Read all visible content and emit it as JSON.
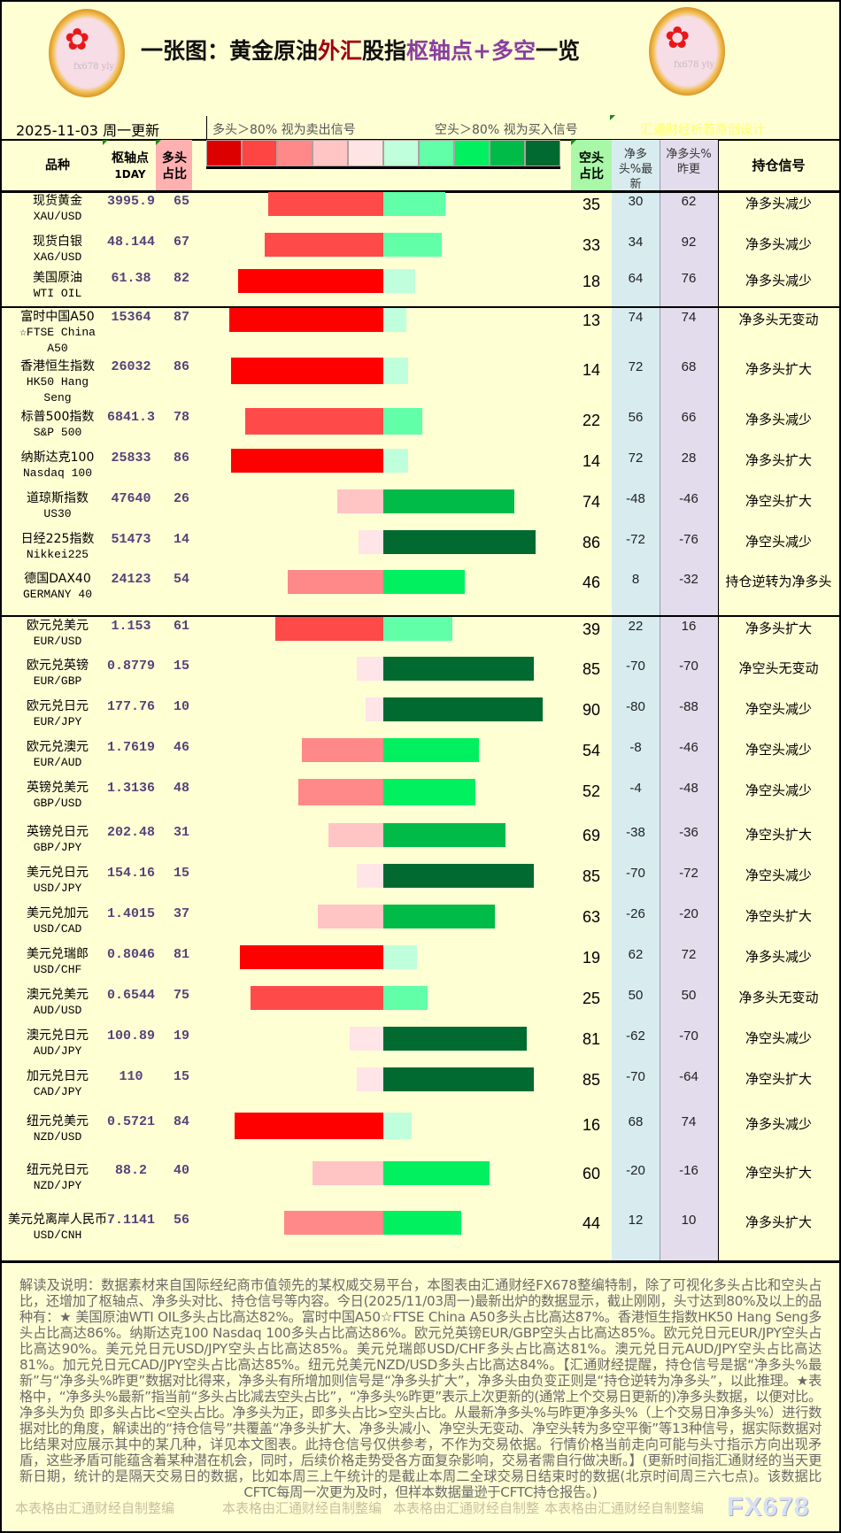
{
  "header": {
    "title_part1": "一张图：黄金原油",
    "title_part2": "外汇",
    "title_part3": "股指",
    "title_part4": "枢轴点+多空",
    "title_part5": "一览",
    "logo_watermark": "fx678 yly",
    "date": "2025-11-03  周一更新",
    "legend_long": "多头＞80% 视为卖出信号",
    "legend_short": "空头＞80% 视为买入信号",
    "credit": "汇通财经析若原创设计",
    "credit_color": "#ffff66"
  },
  "legend_colors": [
    "#dd0000",
    "#ff4444",
    "#ff8888",
    "#ffc4c4",
    "#ffe4e4",
    "#c0ffdc",
    "#60ffa8",
    "#00f060",
    "#00bb48",
    "#006a30"
  ],
  "bar_colors": {
    "long": {
      "ge80": "#ff0000",
      "61_79": "#ff4a4a",
      "41_60": "#ff8888",
      "21_40": "#ffc4c4",
      "le20": "#ffe4e8"
    },
    "short": {
      "ge80": "#006a30",
      "61_79": "#00bb48",
      "41_60": "#00f060",
      "21_40": "#60ffa8",
      "le20": "#c0ffdc"
    }
  },
  "columns": {
    "symbol": "品种",
    "pivot": "枢轴点",
    "pivot_sub": "1DAY",
    "long_pct": "多头占比",
    "short_pct": "空头占比",
    "net_latest": "净多头%最新",
    "net_prev": "净多头%昨更",
    "signal": "持仓信号"
  },
  "rows": [
    {
      "name": "现货黄金",
      "code": "XAU/USD",
      "pivot": "3995.9",
      "long": 65,
      "short": 35,
      "net": "30",
      "prev": "62",
      "signal": "净多头减少"
    },
    {
      "name": "现货白银",
      "code": "XAG/USD",
      "pivot": "48.144",
      "long": 67,
      "short": 33,
      "net": "34",
      "prev": "92",
      "signal": "净多头减少"
    },
    {
      "name": "美国原油",
      "code": "WTI OIL",
      "pivot": "61.38",
      "long": 82,
      "short": 18,
      "net": "64",
      "prev": "76",
      "signal": "净多头减少"
    },
    {
      "name": "富时中国A50",
      "code": "☆FTSE China A50",
      "pivot": "15364",
      "long": 87,
      "short": 13,
      "net": "74",
      "prev": "74",
      "signal": "净多头无变动"
    },
    {
      "name": "香港恒生指数",
      "code": "HK50 Hang Seng",
      "pivot": "26032",
      "long": 86,
      "short": 14,
      "net": "72",
      "prev": "68",
      "signal": "净多头扩大"
    },
    {
      "name": "标普500指数",
      "code": "S&P 500",
      "pivot": "6841.3",
      "long": 78,
      "short": 22,
      "net": "56",
      "prev": "66",
      "signal": "净多头减少"
    },
    {
      "name": "纳斯达克100",
      "code": "Nasdaq 100",
      "pivot": "25833",
      "long": 86,
      "short": 14,
      "net": "72",
      "prev": "28",
      "signal": "净多头扩大"
    },
    {
      "name": "道琼斯指数",
      "code": "US30",
      "pivot": "47640",
      "long": 26,
      "short": 74,
      "net": "-48",
      "prev": "-46",
      "signal": "净空头扩大"
    },
    {
      "name": "日经225指数",
      "code": "Nikkei225",
      "pivot": "51473",
      "long": 14,
      "short": 86,
      "net": "-72",
      "prev": "-76",
      "signal": "净空头减少"
    },
    {
      "name": "德国DAX40",
      "code": "GERMANY 40",
      "pivot": "24123",
      "long": 54,
      "short": 46,
      "net": "8",
      "prev": "-32",
      "signal": "持仓逆转为净多头"
    },
    {
      "name": "欧元兑美元",
      "code": "EUR/USD",
      "pivot": "1.153",
      "long": 61,
      "short": 39,
      "net": "22",
      "prev": "16",
      "signal": "净多头扩大"
    },
    {
      "name": "欧元兑英镑",
      "code": "EUR/GBP",
      "pivot": "0.8779",
      "long": 15,
      "short": 85,
      "net": "-70",
      "prev": "-70",
      "signal": "净空头无变动"
    },
    {
      "name": "欧元兑日元",
      "code": "EUR/JPY",
      "pivot": "177.76",
      "long": 10,
      "short": 90,
      "net": "-80",
      "prev": "-88",
      "signal": "净空头减少"
    },
    {
      "name": "欧元兑澳元",
      "code": "EUR/AUD",
      "pivot": "1.7619",
      "long": 46,
      "short": 54,
      "net": "-8",
      "prev": "-46",
      "signal": "净空头减少"
    },
    {
      "name": "英镑兑美元",
      "code": "GBP/USD",
      "pivot": "1.3136",
      "long": 48,
      "short": 52,
      "net": "-4",
      "prev": "-48",
      "signal": "净空头减少"
    },
    {
      "name": "英镑兑日元",
      "code": "GBP/JPY",
      "pivot": "202.48",
      "long": 31,
      "short": 69,
      "net": "-38",
      "prev": "-36",
      "signal": "净空头扩大"
    },
    {
      "name": "美元兑日元",
      "code": "USD/JPY",
      "pivot": "154.16",
      "long": 15,
      "short": 85,
      "net": "-70",
      "prev": "-72",
      "signal": "净空头减少"
    },
    {
      "name": "美元兑加元",
      "code": "USD/CAD",
      "pivot": "1.4015",
      "long": 37,
      "short": 63,
      "net": "-26",
      "prev": "-20",
      "signal": "净空头扩大"
    },
    {
      "name": "美元兑瑞郎",
      "code": "USD/CHF",
      "pivot": "0.8046",
      "long": 81,
      "short": 19,
      "net": "62",
      "prev": "72",
      "signal": "净多头减少"
    },
    {
      "name": "澳元兑美元",
      "code": "AUD/USD",
      "pivot": "0.6544",
      "long": 75,
      "short": 25,
      "net": "50",
      "prev": "50",
      "signal": "净多头无变动"
    },
    {
      "name": "澳元兑日元",
      "code": "AUD/JPY",
      "pivot": "100.89",
      "long": 19,
      "short": 81,
      "net": "-62",
      "prev": "-70",
      "signal": "净空头减少"
    },
    {
      "name": "加元兑日元",
      "code": "CAD/JPY",
      "pivot": "110",
      "long": 15,
      "short": 85,
      "net": "-70",
      "prev": "-64",
      "signal": "净空头扩大"
    },
    {
      "name": "纽元兑美元",
      "code": "NZD/USD",
      "pivot": "0.5721",
      "long": 84,
      "short": 16,
      "net": "68",
      "prev": "74",
      "signal": "净多头减少"
    },
    {
      "name": "纽元兑日元",
      "code": "NZD/JPY",
      "pivot": "88.2",
      "long": 40,
      "short": 60,
      "net": "-20",
      "prev": "-16",
      "signal": "净空头扩大"
    },
    {
      "name": "美元兑离岸人民币",
      "code": "USD/CNH",
      "pivot": "7.1141",
      "long": 56,
      "short": 44,
      "net": "12",
      "prev": "10",
      "signal": "净多头扩大"
    }
  ],
  "footer": {
    "notes": "解读及说明：数据素材来自国际经纪商市值领先的某权威交易平台，本图表由汇通财经FX678整编特制，除了可视化多头占比和空头占比，还增加了枢轴点、净多头对比、持仓信号等内容。今日(2025/11/03周一)最新出炉的数据显示，截止刚刚，头寸达到80%及以上的品种有：★ 美国原油WTI OIL多头占比高达82%。富时中国A50☆FTSE China A50多头占比高达87%。香港恒生指数HK50 Hang Seng多头占比高达86%。纳斯达克100 Nasdaq 100多头占比高达86%。欧元兑英镑EUR/GBP空头占比高达85%。欧元兑日元EUR/JPY空头占比高达90%。美元兑日元USD/JPY空头占比高达85%。美元兑瑞郎USD/CHF多头占比高达81%。澳元兑日元AUD/JPY空头占比高达81%。加元兑日元CAD/JPY空头占比高达85%。纽元兑美元NZD/USD多头占比高达84%。【汇通财经提醒，持仓信号是据“净多头%最新”与“净多头%昨更”数据对比得来，净多头有所增加则信号是“净多头扩大”，净多头由负变正则是“持仓逆转为净多头”，以此推理。★表格中，“净多头%最新”指当前“多头占比减去空头占比”，“净多头%昨更”表示上次更新的(通常上个交易日更新的)净多头数据，以便对比。净多头为负 即多头占比<空头占比。净多头为正，即多头占比>空头占比。从最新净多头%与昨更净多头%（上个交易日净多头%）进行数据对比的角度，解读出的“持仓信号”共覆盖“净多头扩大、净多头减小、净空头无变动、净空头转为多空平衡”等13种信号，据实际数据对比结果对应展示其中的某几种，详见本文图表。此持仓信号仅供参考，不作为交易依据。行情价格当前走向可能与头寸指示方向出现矛盾，这些矛盾可能蕴含着某种潜在机会，同时，后续价格走势受各方面复杂影响，交易者需自行做决断。】(更新时间指汇通财经的当天更新日期，统计的是隔天交易日的数据，比如本周三上午统计的是截止本周二全球交易日结束时的数据(北京时间周三六七点)。该数据比CFTC每周一次更为及时，但样本数据量逊于CFTC持仓报告。)",
    "watermarks": [
      "本表格由汇通财经自制整编",
      "本表格由汇通财经自制整编",
      "本表格由汇通财经自制整",
      "本表格由汇通财经自制整编"
    ],
    "brand": "FX678"
  }
}
